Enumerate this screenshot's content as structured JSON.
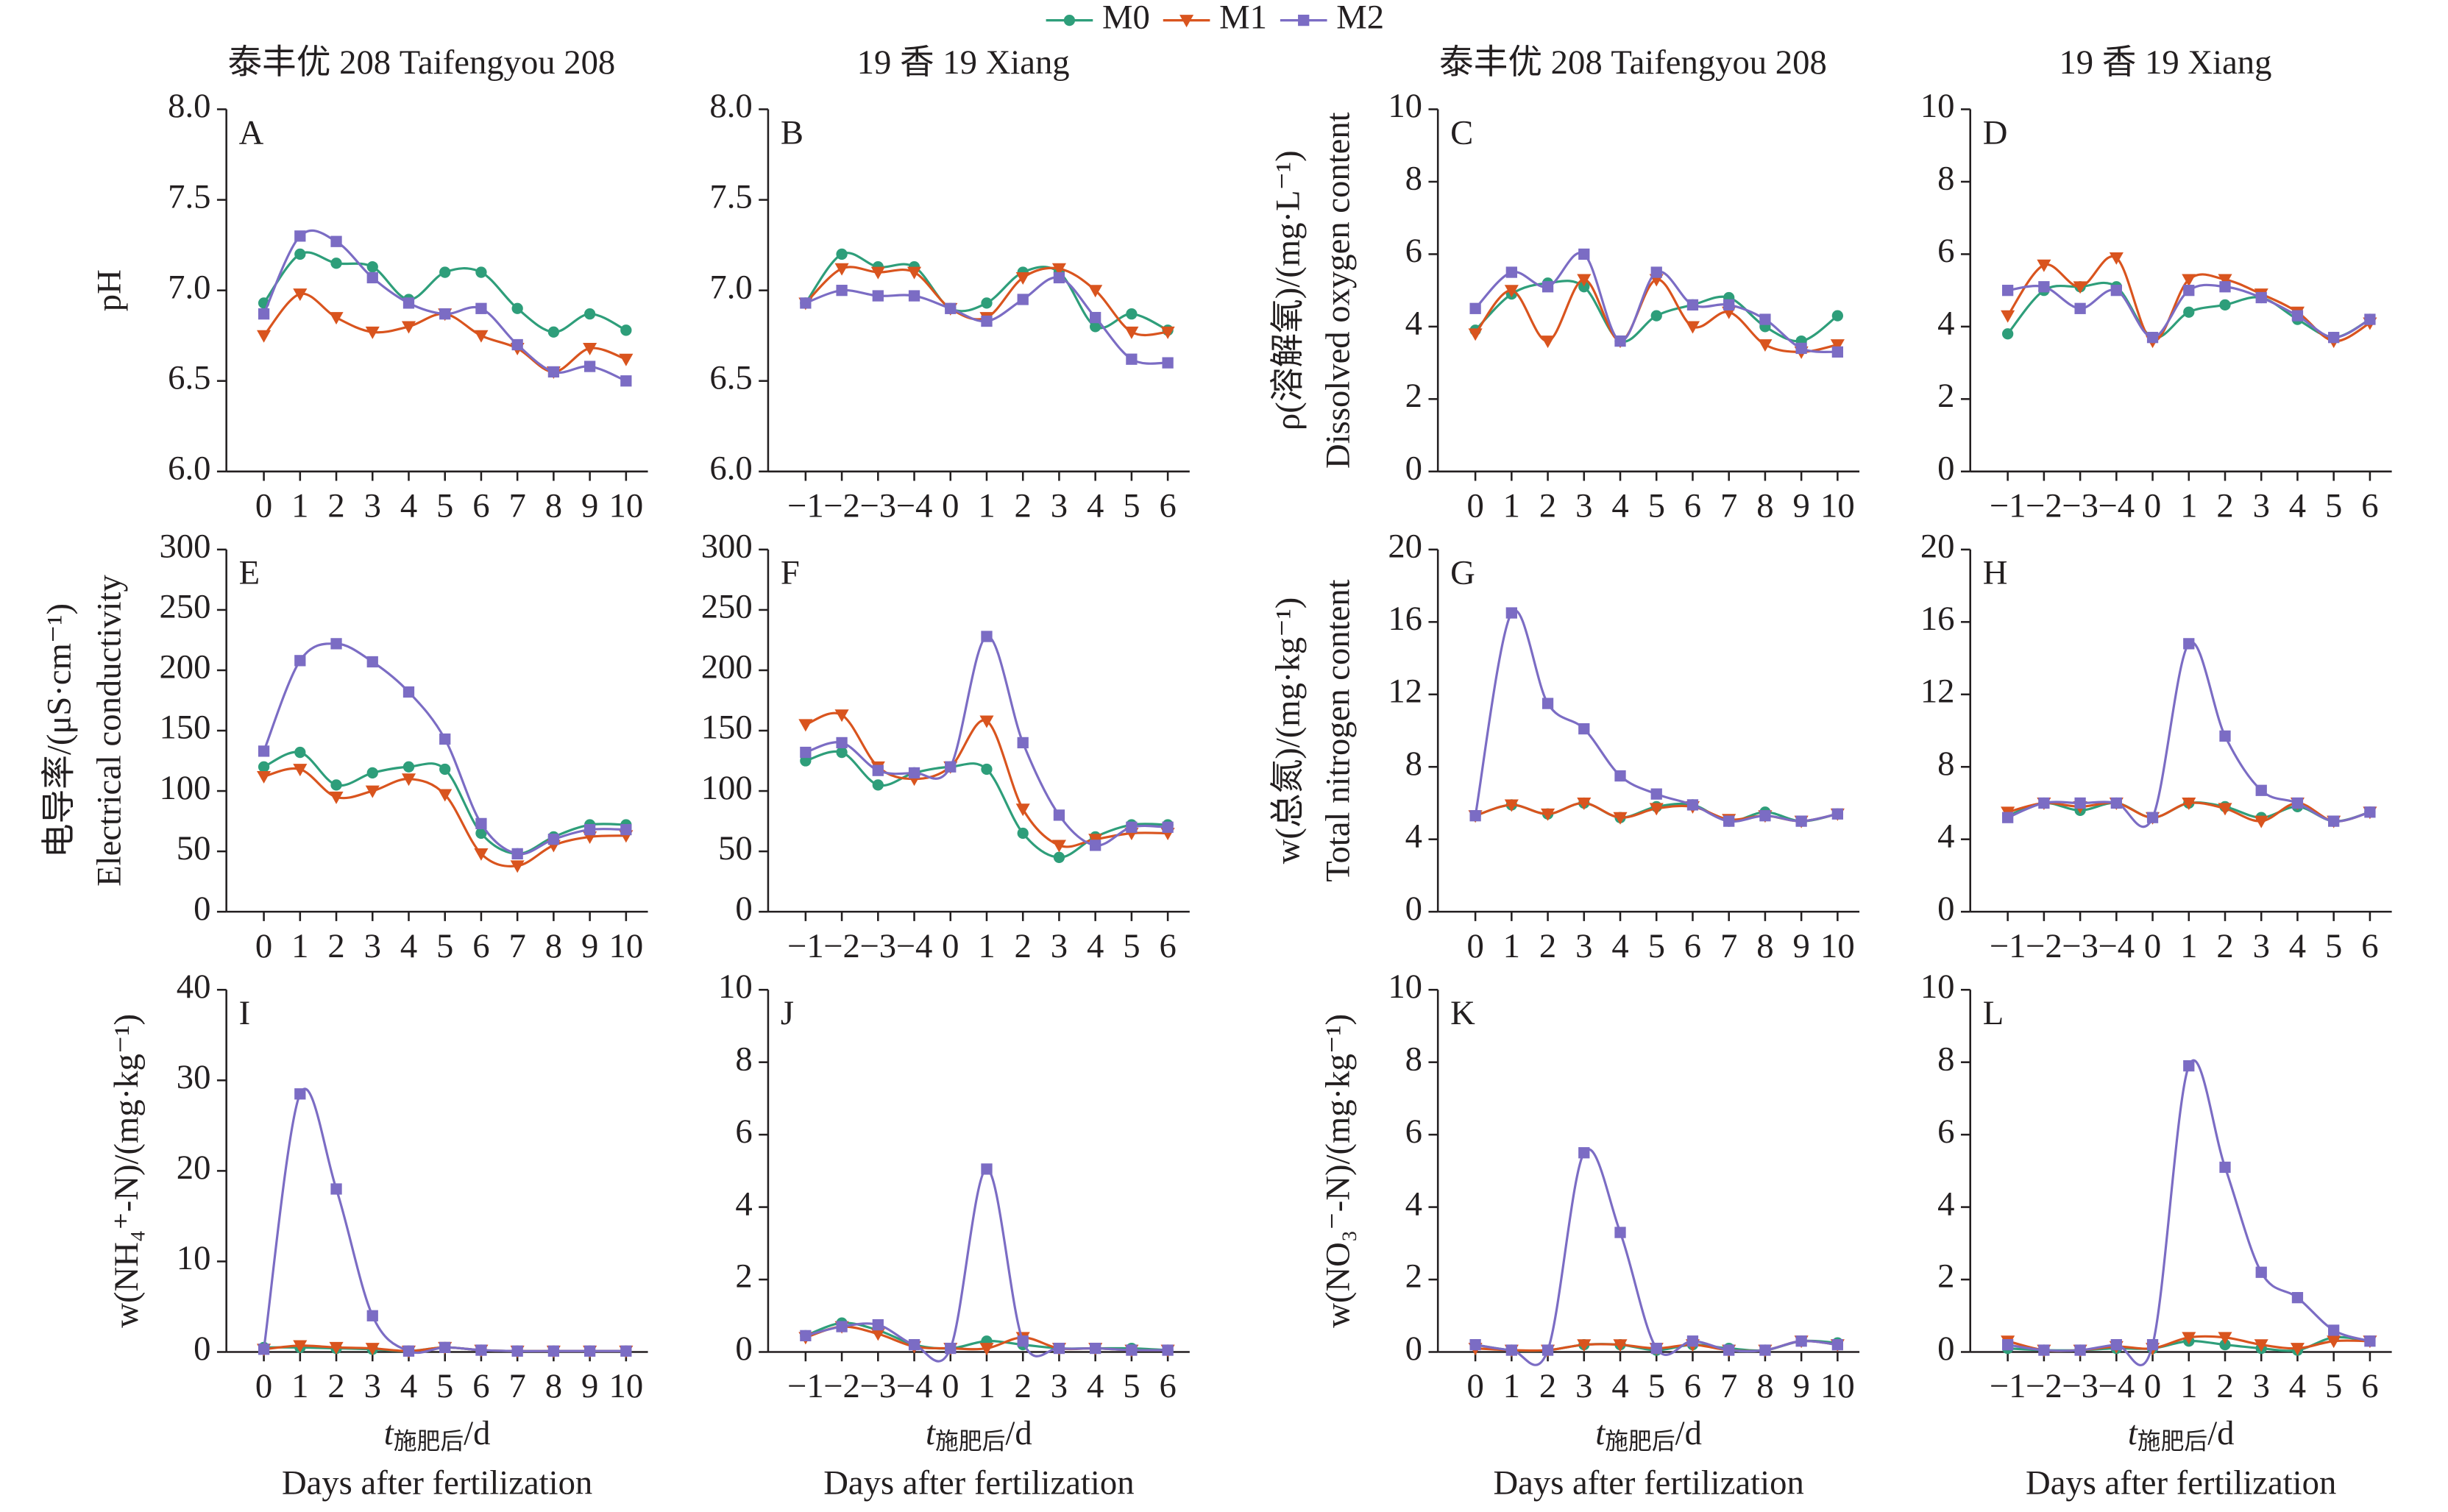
{
  "chart_data": [
    {
      "type": "line",
      "title": "泰丰优 208 Taifengyou 208",
      "panel_label": "A",
      "y_label": [
        "pH"
      ],
      "categories": [
        "0",
        "1",
        "2",
        "3",
        "4",
        "5",
        "6",
        "7",
        "8",
        "9",
        "10"
      ],
      "ylim": [
        6,
        8
      ],
      "yticks": [
        {
          "value": 6,
          "label": "6.0"
        },
        6.5,
        {
          "value": 7,
          "label": "7.0"
        },
        7.5,
        {
          "value": 8,
          "label": "8.0"
        }
      ],
      "series": [
        {
          "name": "M0",
          "color": "#2e9e7a",
          "values": [
            6.93,
            7.2,
            7.15,
            7.13,
            6.95,
            7.1,
            7.1,
            6.9,
            6.77,
            6.87,
            6.78
          ]
        },
        {
          "name": "M1",
          "color": "#d9541e",
          "values": [
            6.75,
            6.98,
            6.85,
            6.77,
            6.8,
            6.87,
            6.75,
            6.68,
            6.55,
            6.68,
            6.62
          ]
        },
        {
          "name": "M2",
          "color": "#7b6cc4",
          "values": [
            6.87,
            7.3,
            7.27,
            7.07,
            6.93,
            6.87,
            6.9,
            6.7,
            6.55,
            6.58,
            6.5
          ]
        }
      ]
    },
    {
      "type": "line",
      "title": "19 香 19 Xiang",
      "panel_label": "B",
      "categories": [
        "−1",
        "−2",
        "−3",
        "−4",
        "0",
        "1",
        "2",
        "3",
        "4",
        "5",
        "6"
      ],
      "ylim": [
        6,
        8
      ],
      "yticks": [
        {
          "value": 6,
          "label": "6.0"
        },
        6.5,
        {
          "value": 7,
          "label": "7.0"
        },
        7.5,
        {
          "value": 8,
          "label": "8.0"
        }
      ],
      "series": [
        {
          "name": "M0",
          "color": "#2e9e7a",
          "values": [
            6.93,
            7.2,
            7.13,
            7.13,
            6.9,
            6.93,
            7.1,
            7.1,
            6.8,
            6.87,
            6.78
          ]
        },
        {
          "name": "M1",
          "color": "#d9541e",
          "values": [
            6.93,
            7.12,
            7.1,
            7.1,
            6.9,
            6.85,
            7.07,
            7.12,
            7.0,
            6.77,
            6.77
          ]
        },
        {
          "name": "M2",
          "color": "#7b6cc4",
          "values": [
            6.93,
            7.0,
            6.97,
            6.97,
            6.9,
            6.83,
            6.95,
            7.07,
            6.85,
            6.62,
            6.6
          ]
        }
      ]
    },
    {
      "type": "line",
      "title": "泰丰优 208 Taifengyou 208",
      "panel_label": "C",
      "y_label": [
        "ρ(溶解氧)/(mg·L⁻¹)",
        "Dissolved oxygen content"
      ],
      "categories": [
        "0",
        "1",
        "2",
        "3",
        "4",
        "5",
        "6",
        "7",
        "8",
        "9",
        "10"
      ],
      "ylim": [
        0,
        10
      ],
      "yticks": [
        0,
        2,
        4,
        6,
        8,
        10
      ],
      "series": [
        {
          "name": "M0",
          "color": "#2e9e7a",
          "values": [
            3.9,
            4.9,
            5.2,
            5.1,
            3.6,
            4.3,
            4.6,
            4.8,
            4.0,
            3.6,
            4.3
          ]
        },
        {
          "name": "M1",
          "color": "#d9541e",
          "values": [
            3.8,
            5.0,
            3.6,
            5.3,
            3.6,
            5.3,
            4.0,
            4.4,
            3.5,
            3.3,
            3.5
          ]
        },
        {
          "name": "M2",
          "color": "#7b6cc4",
          "values": [
            4.5,
            5.5,
            5.1,
            6.0,
            3.6,
            5.5,
            4.6,
            4.6,
            4.2,
            3.4,
            3.3
          ]
        }
      ]
    },
    {
      "type": "line",
      "title": "19 香 19 Xiang",
      "panel_label": "D",
      "categories": [
        "−1",
        "−2",
        "−3",
        "−4",
        "0",
        "1",
        "2",
        "3",
        "4",
        "5",
        "6"
      ],
      "ylim": [
        0,
        10
      ],
      "yticks": [
        0,
        2,
        4,
        6,
        8,
        10
      ],
      "series": [
        {
          "name": "M0",
          "color": "#2e9e7a",
          "values": [
            3.8,
            5.0,
            5.1,
            5.1,
            3.7,
            4.4,
            4.6,
            4.8,
            4.2,
            3.7,
            4.2
          ]
        },
        {
          "name": "M1",
          "color": "#d9541e",
          "values": [
            4.3,
            5.7,
            5.1,
            5.9,
            3.6,
            5.3,
            5.3,
            4.9,
            4.4,
            3.6,
            4.1
          ]
        },
        {
          "name": "M2",
          "color": "#7b6cc4",
          "values": [
            5.0,
            5.1,
            4.5,
            5.0,
            3.7,
            5.0,
            5.1,
            4.8,
            4.3,
            3.7,
            4.2
          ]
        }
      ]
    },
    {
      "type": "line",
      "panel_label": "E",
      "y_label": [
        "电导率/(μS·cm⁻¹)",
        "Electrical conductivity"
      ],
      "categories": [
        "0",
        "1",
        "2",
        "3",
        "4",
        "5",
        "6",
        "7",
        "8",
        "9",
        "10"
      ],
      "ylim": [
        0,
        300
      ],
      "yticks": [
        0,
        50,
        100,
        150,
        200,
        250,
        300
      ],
      "series": [
        {
          "name": "M0",
          "color": "#2e9e7a",
          "values": [
            120,
            132,
            105,
            115,
            120,
            118,
            65,
            48,
            62,
            72,
            72
          ]
        },
        {
          "name": "M1",
          "color": "#d9541e",
          "values": [
            112,
            118,
            95,
            100,
            110,
            97,
            48,
            38,
            55,
            62,
            63
          ]
        },
        {
          "name": "M2",
          "color": "#7b6cc4",
          "values": [
            133,
            208,
            222,
            207,
            182,
            143,
            73,
            48,
            60,
            68,
            68
          ]
        }
      ]
    },
    {
      "type": "line",
      "panel_label": "F",
      "categories": [
        "−1",
        "−2",
        "−3",
        "−4",
        "0",
        "1",
        "2",
        "3",
        "4",
        "5",
        "6"
      ],
      "ylim": [
        0,
        300
      ],
      "yticks": [
        0,
        50,
        100,
        150,
        200,
        250,
        300
      ],
      "series": [
        {
          "name": "M0",
          "color": "#2e9e7a",
          "values": [
            125,
            132,
            105,
            115,
            120,
            118,
            65,
            45,
            62,
            72,
            72
          ]
        },
        {
          "name": "M1",
          "color": "#d9541e",
          "values": [
            155,
            163,
            120,
            110,
            120,
            158,
            85,
            55,
            60,
            65,
            65
          ]
        },
        {
          "name": "M2",
          "color": "#7b6cc4",
          "values": [
            132,
            140,
            117,
            115,
            120,
            228,
            140,
            80,
            55,
            70,
            70
          ]
        }
      ]
    },
    {
      "type": "line",
      "panel_label": "G",
      "y_label": [
        "w(总氮)/(mg·kg⁻¹)",
        "Total nitrogen content"
      ],
      "categories": [
        "0",
        "1",
        "2",
        "3",
        "4",
        "5",
        "6",
        "7",
        "8",
        "9",
        "10"
      ],
      "ylim": [
        0,
        20
      ],
      "yticks": [
        0,
        4,
        8,
        12,
        16,
        20
      ],
      "series": [
        {
          "name": "M0",
          "color": "#2e9e7a",
          "values": [
            5.3,
            5.9,
            5.4,
            6.0,
            5.2,
            5.8,
            5.9,
            5.0,
            5.5,
            5.0,
            5.4
          ]
        },
        {
          "name": "M1",
          "color": "#d9541e",
          "values": [
            5.3,
            5.9,
            5.4,
            6.0,
            5.2,
            5.7,
            5.8,
            5.1,
            5.3,
            5.0,
            5.4
          ]
        },
        {
          "name": "M2",
          "color": "#7b6cc4",
          "values": [
            5.3,
            16.5,
            11.5,
            10.1,
            7.5,
            6.5,
            5.9,
            5.0,
            5.3,
            5.0,
            5.4
          ]
        }
      ]
    },
    {
      "type": "line",
      "panel_label": "H",
      "categories": [
        "−1",
        "−2",
        "−3",
        "−4",
        "0",
        "1",
        "2",
        "3",
        "4",
        "5",
        "6"
      ],
      "ylim": [
        0,
        20
      ],
      "yticks": [
        0,
        4,
        8,
        12,
        16,
        20
      ],
      "series": [
        {
          "name": "M0",
          "color": "#2e9e7a",
          "values": [
            5.3,
            6.0,
            5.6,
            6.0,
            5.2,
            6.0,
            5.8,
            5.2,
            5.8,
            5.0,
            5.5
          ]
        },
        {
          "name": "M1",
          "color": "#d9541e",
          "values": [
            5.5,
            6.0,
            5.8,
            6.0,
            5.2,
            6.0,
            5.7,
            5.0,
            6.0,
            5.0,
            5.5
          ]
        },
        {
          "name": "M2",
          "color": "#7b6cc4",
          "values": [
            5.2,
            6.0,
            6.0,
            6.0,
            5.2,
            14.8,
            9.7,
            6.7,
            6.0,
            5.0,
            5.5
          ]
        }
      ]
    },
    {
      "type": "line",
      "panel_label": "I",
      "y_label": [
        "w(NH₄⁺-N)/(mg·kg⁻¹)"
      ],
      "x_label": {
        "symbol": "t",
        "subscript": "施肥后",
        "unit": "/d"
      },
      "x_label_en": "Days after fertilization",
      "categories": [
        "0",
        "1",
        "2",
        "3",
        "4",
        "5",
        "6",
        "7",
        "8",
        "9",
        "10"
      ],
      "ylim": [
        0,
        40
      ],
      "yticks": [
        0,
        10,
        20,
        30,
        40
      ],
      "series": [
        {
          "name": "M0",
          "color": "#2e9e7a",
          "values": [
            0.5,
            0.5,
            0.4,
            0.3,
            0.1,
            0.5,
            0.2,
            0.1,
            0.1,
            0.1,
            0.1
          ]
        },
        {
          "name": "M1",
          "color": "#d9541e",
          "values": [
            0.3,
            0.7,
            0.5,
            0.4,
            0.1,
            0.5,
            0.2,
            0.1,
            0.1,
            0.1,
            0.1
          ]
        },
        {
          "name": "M2",
          "color": "#7b6cc4",
          "values": [
            0.3,
            28.5,
            18.0,
            4.0,
            0.1,
            0.5,
            0.2,
            0.1,
            0.1,
            0.1,
            0.1
          ]
        }
      ]
    },
    {
      "type": "line",
      "panel_label": "J",
      "x_label": {
        "symbol": "t",
        "subscript": "施肥后",
        "unit": "/d"
      },
      "x_label_en": "Days after fertilization",
      "categories": [
        "−1",
        "−2",
        "−3",
        "−4",
        "0",
        "1",
        "2",
        "3",
        "4",
        "5",
        "6"
      ],
      "ylim": [
        0,
        10
      ],
      "yticks": [
        0,
        2,
        4,
        6,
        8,
        10
      ],
      "series": [
        {
          "name": "M0",
          "color": "#2e9e7a",
          "values": [
            0.45,
            0.8,
            0.6,
            0.2,
            0.1,
            0.3,
            0.2,
            0.1,
            0.1,
            0.1,
            0.05
          ]
        },
        {
          "name": "M1",
          "color": "#d9541e",
          "values": [
            0.4,
            0.7,
            0.5,
            0.15,
            0.1,
            0.1,
            0.4,
            0.1,
            0.1,
            0.05,
            0.05
          ]
        },
        {
          "name": "M2",
          "color": "#7b6cc4",
          "values": [
            0.45,
            0.7,
            0.75,
            0.2,
            0.1,
            5.05,
            0.3,
            0.1,
            0.1,
            0.05,
            0.05
          ]
        }
      ]
    },
    {
      "type": "line",
      "panel_label": "K",
      "y_label": [
        "w(NO₃⁻-N)/(mg·kg⁻¹)"
      ],
      "x_label": {
        "symbol": "t",
        "subscript": "施肥后",
        "unit": "/d"
      },
      "x_label_en": "Days after fertilization",
      "categories": [
        "0",
        "1",
        "2",
        "3",
        "4",
        "5",
        "6",
        "7",
        "8",
        "9",
        "10"
      ],
      "ylim": [
        0,
        10
      ],
      "yticks": [
        0,
        2,
        4,
        6,
        8,
        10
      ],
      "series": [
        {
          "name": "M0",
          "color": "#2e9e7a",
          "values": [
            0.2,
            0.05,
            0.05,
            0.2,
            0.2,
            0.05,
            0.2,
            0.1,
            0.05,
            0.3,
            0.25
          ]
        },
        {
          "name": "M1",
          "color": "#d9541e",
          "values": [
            0.1,
            0.05,
            0.05,
            0.2,
            0.2,
            0.1,
            0.2,
            0.05,
            0.05,
            0.3,
            0.2
          ]
        },
        {
          "name": "M2",
          "color": "#7b6cc4",
          "values": [
            0.2,
            0.05,
            0.05,
            5.5,
            3.3,
            0.1,
            0.3,
            0.05,
            0.05,
            0.3,
            0.2
          ]
        }
      ]
    },
    {
      "type": "line",
      "panel_label": "L",
      "x_label": {
        "symbol": "t",
        "subscript": "施肥后",
        "unit": "/d"
      },
      "x_label_en": "Days after fertilization",
      "categories": [
        "−1",
        "−2",
        "−3",
        "−4",
        "0",
        "1",
        "2",
        "3",
        "4",
        "5",
        "6"
      ],
      "ylim": [
        0,
        10
      ],
      "yticks": [
        0,
        2,
        4,
        6,
        8,
        10
      ],
      "series": [
        {
          "name": "M0",
          "color": "#2e9e7a",
          "values": [
            0.1,
            0.05,
            0.05,
            0.1,
            0.1,
            0.3,
            0.2,
            0.1,
            0.05,
            0.4,
            0.3
          ]
        },
        {
          "name": "M1",
          "color": "#d9541e",
          "values": [
            0.3,
            0.05,
            0.05,
            0.15,
            0.1,
            0.4,
            0.4,
            0.2,
            0.1,
            0.3,
            0.3
          ]
        },
        {
          "name": "M2",
          "color": "#7b6cc4",
          "values": [
            0.2,
            0.05,
            0.05,
            0.2,
            0.2,
            7.9,
            5.1,
            2.2,
            1.5,
            0.6,
            0.3
          ]
        }
      ]
    }
  ]
}
